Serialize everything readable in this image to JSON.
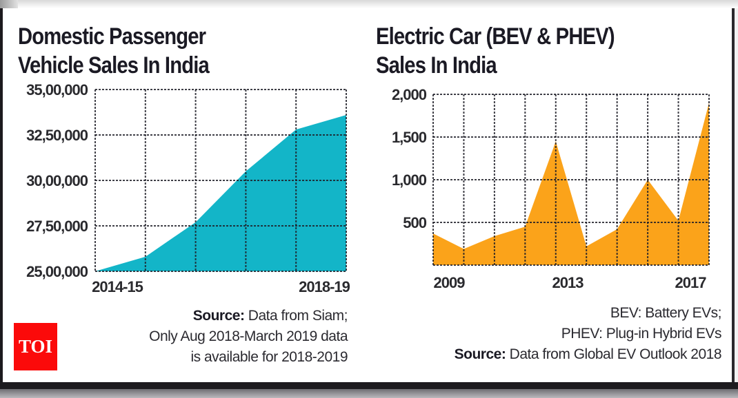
{
  "brand": {
    "logo_text": "TOI",
    "logo_color": "#FB0A0A"
  },
  "chart_data": [
    {
      "type": "area",
      "title": "Domestic Passenger Vehicle Sales In India",
      "title_lines": [
        "Domestic Passenger",
        "Vehicle Sales In India"
      ],
      "xlabel": "",
      "ylabel": "",
      "x": [
        "2014-15",
        "",
        "",
        "",
        "",
        "2018-19"
      ],
      "x_tick_labels": [
        "2014-15",
        "2018-19"
      ],
      "values": [
        2500000,
        2580000,
        2770000,
        3050000,
        3280000,
        3360000
      ],
      "ylim": [
        2500000,
        3500000
      ],
      "y_ticks": [
        2500000,
        2750000,
        3000000,
        3250000,
        3500000
      ],
      "y_tick_labels": [
        "25,00,000",
        "27,50,000",
        "30,00,000",
        "32,50,000",
        "35,00,000"
      ],
      "grid": true,
      "color": "#13B5C8",
      "notes": {
        "source_label": "Source:",
        "lines": [
          " Data from Siam;",
          "Only Aug 2018-March 2019 data",
          "is available for 2018-2019"
        ]
      }
    },
    {
      "type": "area",
      "title": "Electric Car (BEV & PHEV) Sales In India",
      "title_lines": [
        "Electric Car (BEV & PHEV)",
        "Sales In India"
      ],
      "xlabel": "",
      "ylabel": "",
      "x": [
        "",
        "2009",
        "",
        "",
        "",
        "2013",
        "",
        "",
        "",
        "2017"
      ],
      "x_tick_labels": [
        "2009",
        "2013",
        "2017"
      ],
      "values": [
        370,
        190,
        340,
        450,
        1450,
        220,
        420,
        1000,
        520,
        1900
      ],
      "ylim": [
        0,
        2000
      ],
      "y_ticks": [
        500,
        1000,
        1500,
        2000
      ],
      "y_tick_labels": [
        "500",
        "1,000",
        "1,500",
        "2,000"
      ],
      "grid": true,
      "color": "#FBA31A",
      "notes": {
        "lines": [
          "BEV: Battery EVs;",
          "PHEV: Plug-in Hybrid EVs"
        ],
        "source_label": "Source:",
        "source_text": " Data from Global EV Outlook 2018"
      }
    }
  ]
}
